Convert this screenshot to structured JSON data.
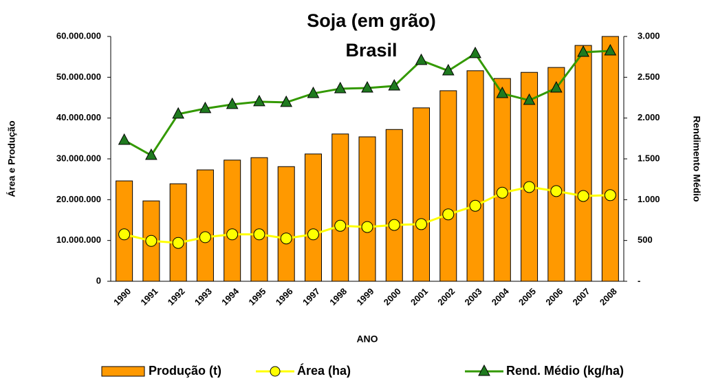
{
  "chart_data": {
    "type": "bar_line_combo",
    "title": "Soja (em grão)",
    "subtitle": "Brasil",
    "x_label": "ANO",
    "y_label": "Área e Produção",
    "y2_label": "Rendimento Médio",
    "categories": [
      "1990",
      "1991",
      "1992",
      "1993",
      "1994",
      "1995",
      "1996",
      "1997",
      "1998",
      "1999",
      "2000",
      "2001",
      "2002",
      "2003",
      "2004",
      "2005",
      "2006",
      "2007",
      "2008"
    ],
    "series": [
      {
        "name": "Produção (t)",
        "type": "bar",
        "color": "#FF9900",
        "axis": "y",
        "values": [
          24600000,
          19700000,
          23900000,
          27300000,
          29700000,
          30300000,
          28100000,
          31200000,
          36100000,
          35400000,
          37200000,
          42500000,
          46700000,
          51600000,
          49700000,
          51200000,
          52400000,
          57800000,
          60000000
        ]
      },
      {
        "name": "Área (ha)",
        "type": "line",
        "color": "#FFFF00",
        "marker": "circle",
        "axis": "y",
        "values": [
          11500000,
          9900000,
          9400000,
          10800000,
          11500000,
          11500000,
          10500000,
          11500000,
          13600000,
          13300000,
          13800000,
          14000000,
          16400000,
          18500000,
          21700000,
          23100000,
          22100000,
          20900000,
          21100000
        ]
      },
      {
        "name": "Rend. Médio (kg/ha)",
        "type": "line",
        "color": "#339900",
        "marker": "triangle",
        "axis": "y2",
        "values": [
          1728,
          1543,
          2049,
          2116,
          2167,
          2200,
          2192,
          2301,
          2360,
          2368,
          2393,
          2706,
          2579,
          2790,
          2301,
          2217,
          2368,
          2806,
          2823
        ]
      }
    ],
    "ylim": [
      0,
      60000000
    ],
    "yticks": [
      0,
      {
        "value": 10000000,
        "label": "10.000.000"
      },
      {
        "value": 20000000,
        "label": "20.000.000"
      },
      {
        "value": 30000000,
        "label": "30.000.000"
      },
      {
        "value": 40000000,
        "label": "40.000.000"
      },
      {
        "value": 50000000,
        "label": "50.000.000"
      },
      {
        "value": 60000000,
        "label": "60.000.000"
      }
    ],
    "y2lim": [
      0,
      3000
    ],
    "y2ticks": [
      {
        "value": 0,
        "label": "-"
      },
      500,
      {
        "value": 1000,
        "label": "1.000"
      },
      {
        "value": 1500,
        "label": "1.500"
      },
      {
        "value": 2000,
        "label": "2.000"
      },
      {
        "value": 2500,
        "label": "2.500"
      },
      {
        "value": 3000,
        "label": "3.000"
      }
    ],
    "grid": false,
    "legend": "bottom"
  }
}
